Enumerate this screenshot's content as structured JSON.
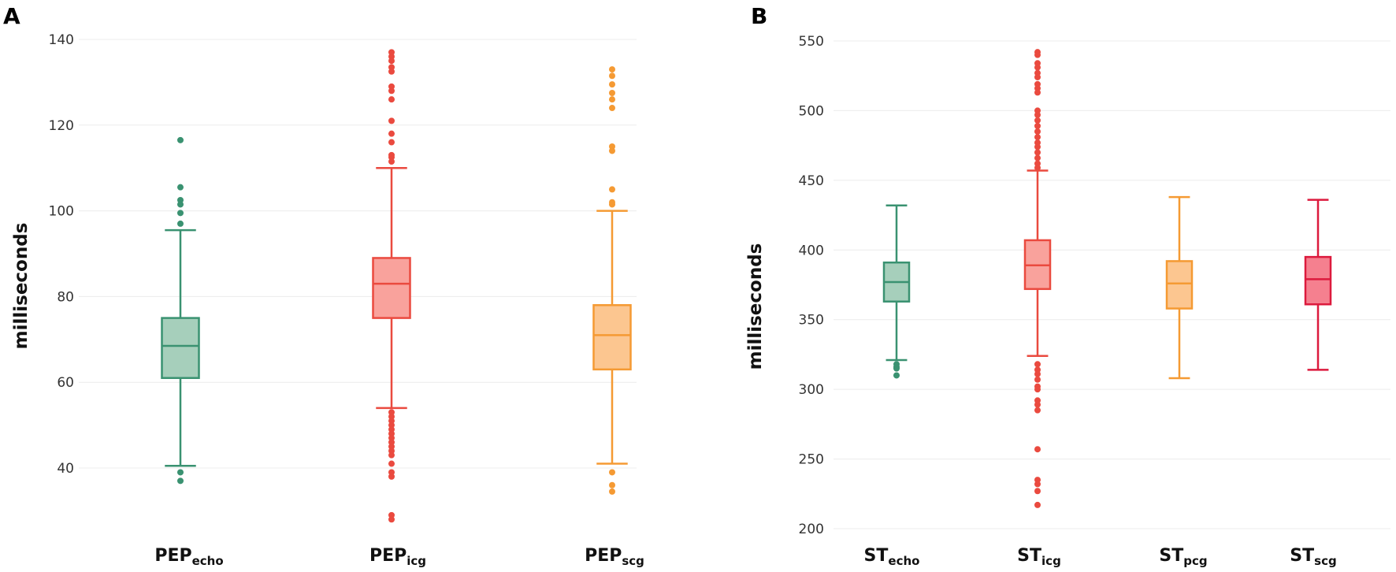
{
  "chart_data": [
    {
      "type": "box",
      "panel_label": "A",
      "ylabel": "milliseconds",
      "ylim": [
        27,
        144
      ],
      "yticks": [
        40,
        60,
        80,
        100,
        120,
        140
      ],
      "grid": true,
      "categories": [
        {
          "base": "PEP",
          "sub": "echo"
        },
        {
          "base": "PEP",
          "sub": "icg"
        },
        {
          "base": "PEP",
          "sub": "scg"
        }
      ],
      "boxes": [
        {
          "color": "#3a9271",
          "fill": "#a6cfbb",
          "whisker_low": 40.5,
          "q1": 61,
          "median": 68.5,
          "q3": 75,
          "whisker_high": 95.5,
          "outliers": [
            116.5,
            105.5,
            102.5,
            101.5,
            99.5,
            97,
            39,
            37
          ]
        },
        {
          "color": "#ea4a3f",
          "fill": "#f9a29c",
          "whisker_low": 54,
          "q1": 75,
          "median": 83,
          "q3": 89,
          "whisker_high": 110,
          "outliers": [
            137,
            136,
            135,
            133.5,
            132.5,
            129,
            128,
            126,
            121,
            118,
            116,
            113,
            112.5,
            111.5,
            53,
            52,
            51,
            50,
            49,
            48,
            47,
            46,
            45,
            44,
            43,
            41,
            39,
            38,
            29,
            28
          ]
        },
        {
          "color": "#f59a33",
          "fill": "#fcc690",
          "whisker_low": 41,
          "q1": 63,
          "median": 71,
          "q3": 78,
          "whisker_high": 100,
          "outliers": [
            133,
            131.5,
            129.5,
            127.5,
            126,
            124,
            115,
            114,
            105,
            102,
            101.5,
            39,
            36,
            34.5
          ]
        }
      ]
    },
    {
      "type": "box",
      "panel_label": "B",
      "ylabel": "milliseconds",
      "ylim": [
        195,
        555
      ],
      "yticks": [
        200,
        250,
        300,
        350,
        400,
        450,
        500,
        550
      ],
      "grid": true,
      "categories": [
        {
          "base": "ST",
          "sub": "echo"
        },
        {
          "base": "ST",
          "sub": "icg"
        },
        {
          "base": "ST",
          "sub": "pcg"
        },
        {
          "base": "ST",
          "sub": "scg"
        }
      ],
      "boxes": [
        {
          "color": "#3a9271",
          "fill": "#a6cfbb",
          "whisker_low": 321,
          "q1": 363,
          "median": 377,
          "q3": 391,
          "whisker_high": 432,
          "outliers": [
            318,
            316,
            315,
            310
          ]
        },
        {
          "color": "#ea4a3f",
          "fill": "#f9a29c",
          "whisker_low": 324,
          "q1": 372,
          "median": 389,
          "q3": 407,
          "whisker_high": 457,
          "outliers": [
            542,
            540,
            534,
            531,
            527,
            524,
            519,
            516,
            513,
            500,
            497,
            493,
            489,
            485,
            481,
            477,
            474,
            470,
            466,
            462,
            459,
            318,
            314,
            311,
            307,
            302,
            300,
            292,
            289,
            285,
            257,
            235,
            232,
            227,
            217
          ]
        },
        {
          "color": "#f59a33",
          "fill": "#fcc690",
          "whisker_low": 308,
          "q1": 358,
          "median": 376,
          "q3": 392,
          "whisker_high": 438,
          "outliers": []
        },
        {
          "color": "#dc1a3d",
          "fill": "#f5808f",
          "whisker_low": 314,
          "q1": 361,
          "median": 379,
          "q3": 395,
          "whisker_high": 436,
          "outliers": []
        }
      ]
    }
  ]
}
